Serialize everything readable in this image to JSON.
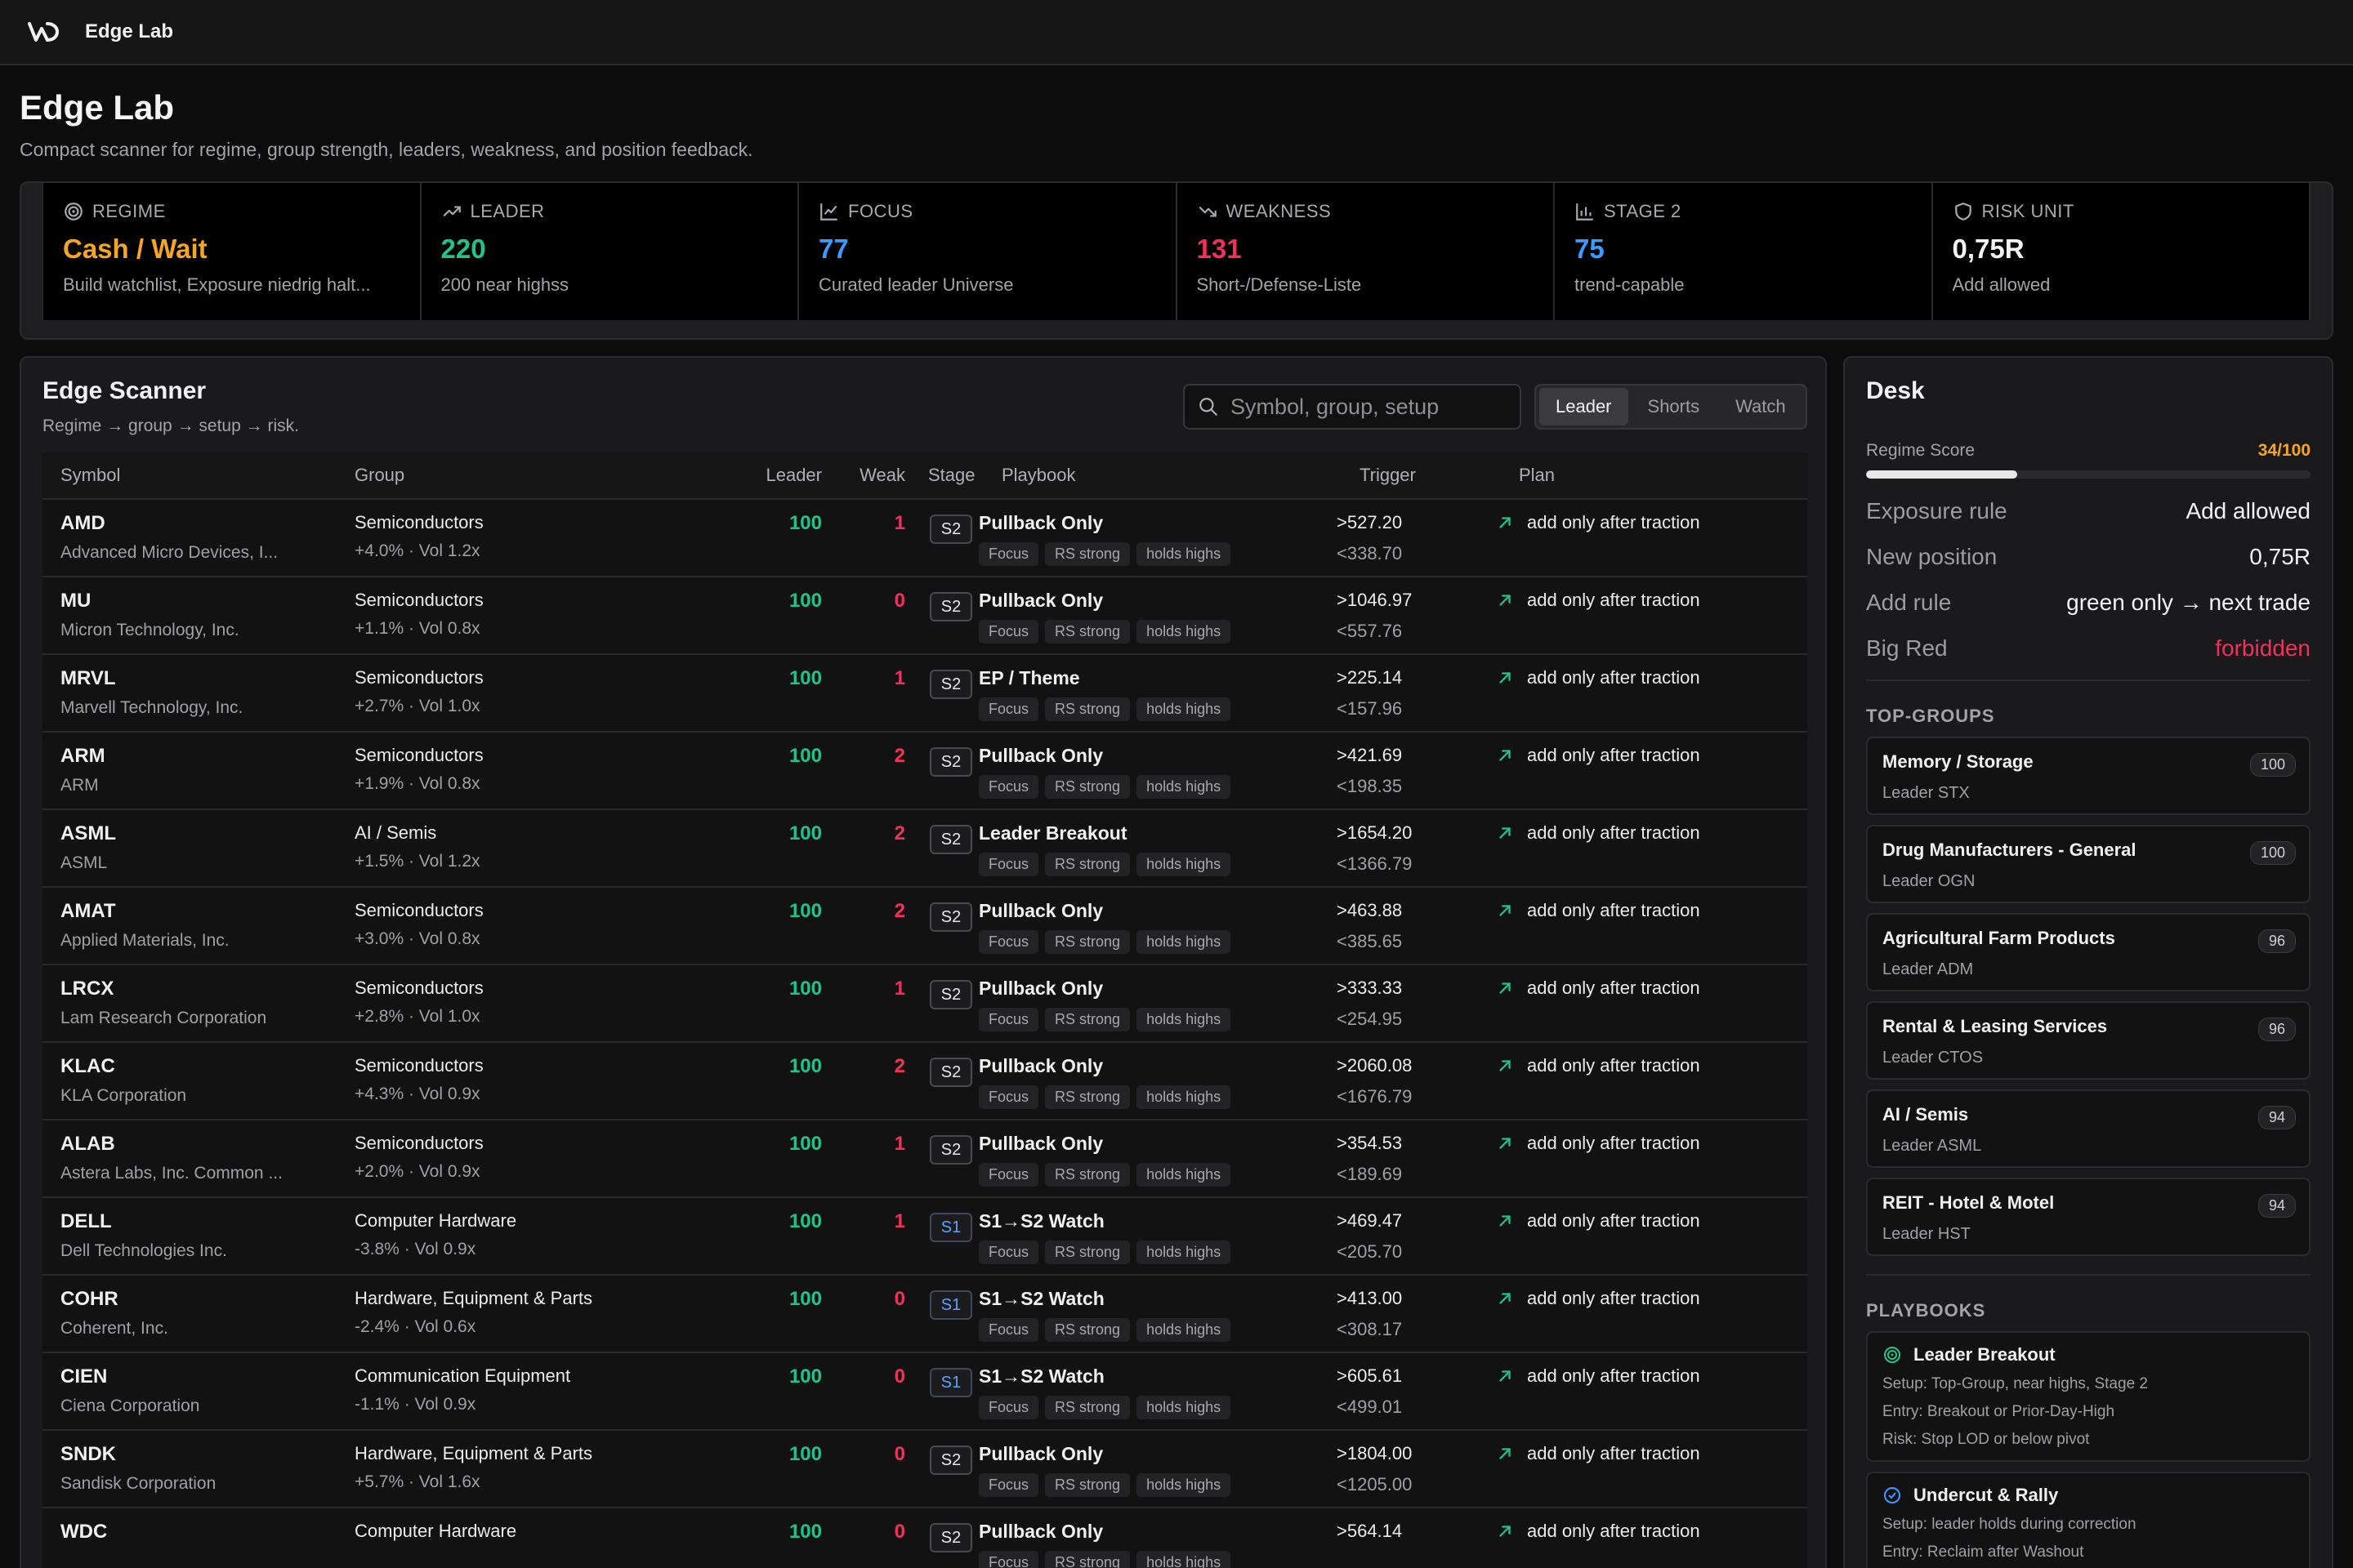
{
  "app": {
    "name": "Edge Lab"
  },
  "page": {
    "title": "Edge Lab",
    "subtitle": "Compact scanner for regime, group strength, leaders, weakness, and position feedback."
  },
  "stats": [
    {
      "label": "REGIME",
      "value": "Cash / Wait",
      "sub": "Build watchlist, Exposure niedrig halt...",
      "color": "#f5a623",
      "icon": "target-icon"
    },
    {
      "label": "LEADER",
      "value": "220",
      "sub": "200 near highss",
      "color": "#22c38b",
      "icon": "trending-up-icon"
    },
    {
      "label": "FOCUS",
      "value": "77",
      "sub": "Curated leader Universe",
      "color": "#3b9bff",
      "icon": "line-chart-icon"
    },
    {
      "label": "WEAKNESS",
      "value": "131",
      "sub": "Short-/Defense-Liste",
      "color": "#f0325a",
      "icon": "trending-down-icon"
    },
    {
      "label": "STAGE 2",
      "value": "75",
      "sub": "trend-capable",
      "color": "#3b9bff",
      "icon": "bar-chart-icon"
    },
    {
      "label": "RISK UNIT",
      "value": "0,75R",
      "sub": "Add allowed",
      "color": "#f2f2f2",
      "icon": "shield-icon"
    }
  ],
  "scanner": {
    "title": "Edge Scanner",
    "subtitle": "Regime → group → setup → risk.",
    "search_placeholder": "Symbol, group, setup",
    "tabs": [
      {
        "label": "Leader",
        "active": true
      },
      {
        "label": "Shorts",
        "active": false
      },
      {
        "label": "Watch",
        "active": false
      }
    ],
    "columns": [
      "Symbol",
      "Group",
      "Leader",
      "Weak",
      "Stage",
      "Playbook",
      "Trigger",
      "Plan"
    ],
    "tags": [
      "Focus",
      "RS strong",
      "holds highs"
    ],
    "rows": [
      {
        "symbol": "AMD",
        "name": "Advanced Micro Devices, I...",
        "group": "Semiconductors",
        "group_sub": "+4.0% · Vol 1.2x",
        "leader": "100",
        "weak": "1",
        "stage": "S2",
        "playbook": "Pullback Only",
        "trig_up": ">527.20",
        "trig_dn": "<338.70",
        "plan": "add only after traction"
      },
      {
        "symbol": "MU",
        "name": "Micron Technology, Inc.",
        "group": "Semiconductors",
        "group_sub": "+1.1% · Vol 0.8x",
        "leader": "100",
        "weak": "0",
        "stage": "S2",
        "playbook": "Pullback Only",
        "trig_up": ">1046.97",
        "trig_dn": "<557.76",
        "plan": "add only after traction"
      },
      {
        "symbol": "MRVL",
        "name": "Marvell Technology, Inc.",
        "group": "Semiconductors",
        "group_sub": "+2.7% · Vol 1.0x",
        "leader": "100",
        "weak": "1",
        "stage": "S2",
        "playbook": "EP / Theme",
        "trig_up": ">225.14",
        "trig_dn": "<157.96",
        "plan": "add only after traction"
      },
      {
        "symbol": "ARM",
        "name": "ARM",
        "group": "Semiconductors",
        "group_sub": "+1.9% · Vol 0.8x",
        "leader": "100",
        "weak": "2",
        "stage": "S2",
        "playbook": "Pullback Only",
        "trig_up": ">421.69",
        "trig_dn": "<198.35",
        "plan": "add only after traction"
      },
      {
        "symbol": "ASML",
        "name": "ASML",
        "group": "AI / Semis",
        "group_sub": "+1.5% · Vol 1.2x",
        "leader": "100",
        "weak": "2",
        "stage": "S2",
        "playbook": "Leader Breakout",
        "trig_up": ">1654.20",
        "trig_dn": "<1366.79",
        "plan": "add only after traction"
      },
      {
        "symbol": "AMAT",
        "name": "Applied Materials, Inc.",
        "group": "Semiconductors",
        "group_sub": "+3.0% · Vol 0.8x",
        "leader": "100",
        "weak": "2",
        "stage": "S2",
        "playbook": "Pullback Only",
        "trig_up": ">463.88",
        "trig_dn": "<385.65",
        "plan": "add only after traction"
      },
      {
        "symbol": "LRCX",
        "name": "Lam Research Corporation",
        "group": "Semiconductors",
        "group_sub": "+2.8% · Vol 1.0x",
        "leader": "100",
        "weak": "1",
        "stage": "S2",
        "playbook": "Pullback Only",
        "trig_up": ">333.33",
        "trig_dn": "<254.95",
        "plan": "add only after traction"
      },
      {
        "symbol": "KLAC",
        "name": "KLA Corporation",
        "group": "Semiconductors",
        "group_sub": "+4.3% · Vol 0.9x",
        "leader": "100",
        "weak": "2",
        "stage": "S2",
        "playbook": "Pullback Only",
        "trig_up": ">2060.08",
        "trig_dn": "<1676.79",
        "plan": "add only after traction"
      },
      {
        "symbol": "ALAB",
        "name": "Astera Labs, Inc. Common ...",
        "group": "Semiconductors",
        "group_sub": "+2.0% · Vol 0.9x",
        "leader": "100",
        "weak": "1",
        "stage": "S2",
        "playbook": "Pullback Only",
        "trig_up": ">354.53",
        "trig_dn": "<189.69",
        "plan": "add only after traction"
      },
      {
        "symbol": "DELL",
        "name": "Dell Technologies Inc.",
        "group": "Computer Hardware",
        "group_sub": "-3.8% · Vol 0.9x",
        "leader": "100",
        "weak": "1",
        "stage": "S1",
        "playbook": "S1→S2 Watch",
        "trig_up": ">469.47",
        "trig_dn": "<205.70",
        "plan": "add only after traction"
      },
      {
        "symbol": "COHR",
        "name": "Coherent, Inc.",
        "group": "Hardware, Equipment & Parts",
        "group_sub": "-2.4% · Vol 0.6x",
        "leader": "100",
        "weak": "0",
        "stage": "S1",
        "playbook": "S1→S2 Watch",
        "trig_up": ">413.00",
        "trig_dn": "<308.17",
        "plan": "add only after traction"
      },
      {
        "symbol": "CIEN",
        "name": "Ciena Corporation",
        "group": "Communication Equipment",
        "group_sub": "-1.1% · Vol 0.9x",
        "leader": "100",
        "weak": "0",
        "stage": "S1",
        "playbook": "S1→S2 Watch",
        "trig_up": ">605.61",
        "trig_dn": "<499.01",
        "plan": "add only after traction"
      },
      {
        "symbol": "SNDK",
        "name": "Sandisk Corporation",
        "group": "Hardware, Equipment & Parts",
        "group_sub": "+5.7% · Vol 1.6x",
        "leader": "100",
        "weak": "0",
        "stage": "S2",
        "playbook": "Pullback Only",
        "trig_up": ">1804.00",
        "trig_dn": "<1205.00",
        "plan": "add only after traction"
      },
      {
        "symbol": "WDC",
        "name": "",
        "group": "Computer Hardware",
        "group_sub": "",
        "leader": "100",
        "weak": "0",
        "stage": "S2",
        "playbook": "Pullback Only",
        "trig_up": ">564.14",
        "trig_dn": "",
        "plan": "add only after traction"
      }
    ]
  },
  "desk": {
    "title": "Desk",
    "score_label": "Regime Score",
    "score_value": "34/100",
    "score_fraction": 0.34,
    "rules": [
      {
        "k": "Exposure rule",
        "v": "Add allowed",
        "red": false
      },
      {
        "k": "New position",
        "v": "0,75R",
        "red": false
      },
      {
        "k": "Add rule",
        "v": "green only → next trade",
        "red": false
      },
      {
        "k": "Big Red",
        "v": "forbidden",
        "red": true
      }
    ],
    "groups_label": "TOP-GROUPS",
    "groups": [
      {
        "name": "Memory / Storage",
        "leader": "Leader STX",
        "score": "100"
      },
      {
        "name": "Drug Manufacturers - General",
        "leader": "Leader OGN",
        "score": "100"
      },
      {
        "name": "Agricultural Farm Products",
        "leader": "Leader ADM",
        "score": "96"
      },
      {
        "name": "Rental & Leasing Services",
        "leader": "Leader CTOS",
        "score": "96"
      },
      {
        "name": "AI / Semis",
        "leader": "Leader ASML",
        "score": "94"
      },
      {
        "name": "REIT - Hotel & Motel",
        "leader": "Leader HST",
        "score": "94"
      }
    ],
    "playbooks_label": "PLAYBOOKS",
    "playbooks": [
      {
        "name": "Leader Breakout",
        "icon": "target-icon",
        "color": "#22c38b",
        "lines": [
          "Setup: Top-Group, near highs, Stage 2",
          "Entry: Breakout or Prior-Day-High",
          "Risk: Stop LOD or below pivot"
        ]
      },
      {
        "name": "Undercut & Rally",
        "icon": "check-circle-icon",
        "color": "#3b9bff",
        "lines": [
          "Setup: leader holds during correction",
          "Entry: Reclaim after Washout"
        ]
      }
    ]
  },
  "colors": {
    "green": "#22c38b",
    "red": "#f0325a",
    "orange": "#f5a623",
    "blue": "#3b9bff"
  }
}
